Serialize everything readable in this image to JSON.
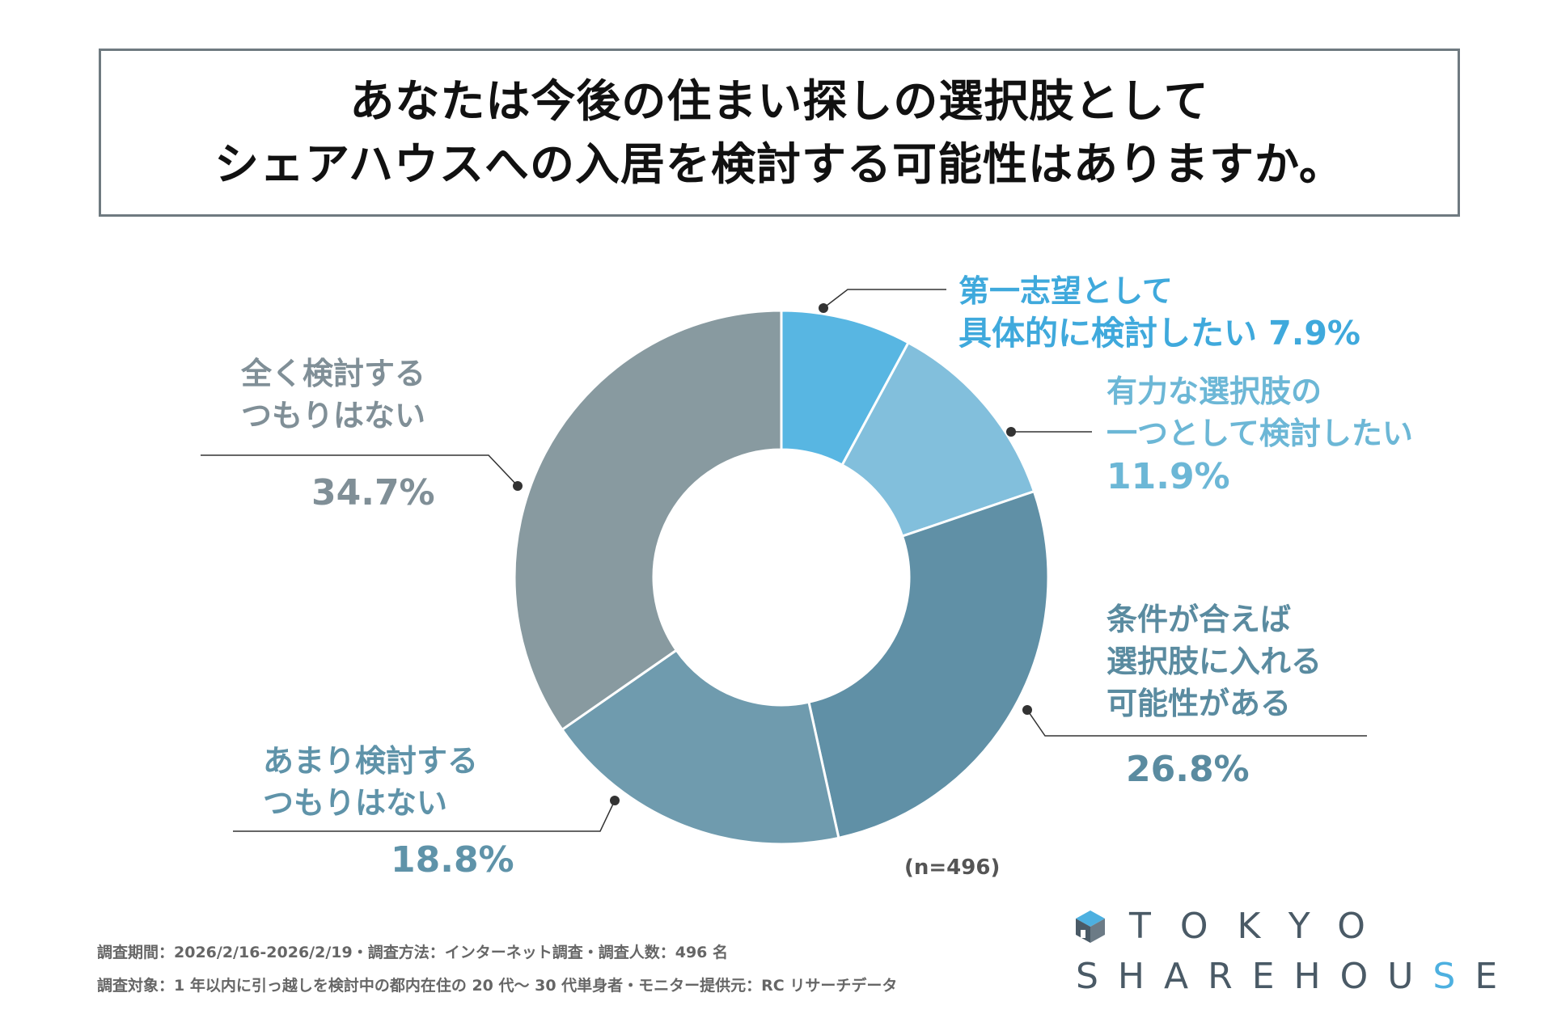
{
  "title": {
    "line1": "あなたは今後の住まい探しの選択肢として",
    "line2": "シェアハウスへの入居を検討する可能性はありますか。"
  },
  "chart_data": {
    "type": "pie",
    "donut": true,
    "categories": [
      "第一志望として具体的に検討したい",
      "有力な選択肢の一つとして検討したい",
      "条件が合えば選択肢に入れる可能性がある",
      "あまり検討するつもりはない",
      "全く検討するつもりはない"
    ],
    "values": [
      7.9,
      11.9,
      26.8,
      18.8,
      34.7
    ],
    "labels": [
      {
        "lines": [
          "第一志望として",
          "具体的に検討したい  7.9%"
        ],
        "value": ""
      },
      {
        "lines": [
          "有力な選択肢の",
          "一つとして検討したい"
        ],
        "value": "11.9%"
      },
      {
        "lines": [
          "条件が合えば",
          "選択肢に入れる",
          "可能性がある"
        ],
        "value": "26.8%"
      },
      {
        "lines": [
          "あまり検討する",
          "つもりはない"
        ],
        "value": "18.8%"
      },
      {
        "lines": [
          "全く検討する",
          "つもりはない"
        ],
        "value": "34.7%"
      }
    ],
    "colors": [
      "#58b6e2",
      "#82bfdc",
      "#6090a6",
      "#6f9bae",
      "#889aa0"
    ],
    "n_note": "(n=496)"
  },
  "footer": {
    "line1": "調査期間：2026/2/16-2026/2/19・調査方法：インターネット調査・調査人数：496 名",
    "line2": "調査対象：1 年以内に引っ越しを検討中の都内在住の 20 代〜 30 代単身者・モニター提供元：RC リサーチデータ"
  },
  "logo": {
    "word1": "TOKYO",
    "word2_a": "SHAREHOU",
    "word2_b": "S",
    "word2_c": "E",
    "mark": "house-cube-logo-icon"
  }
}
